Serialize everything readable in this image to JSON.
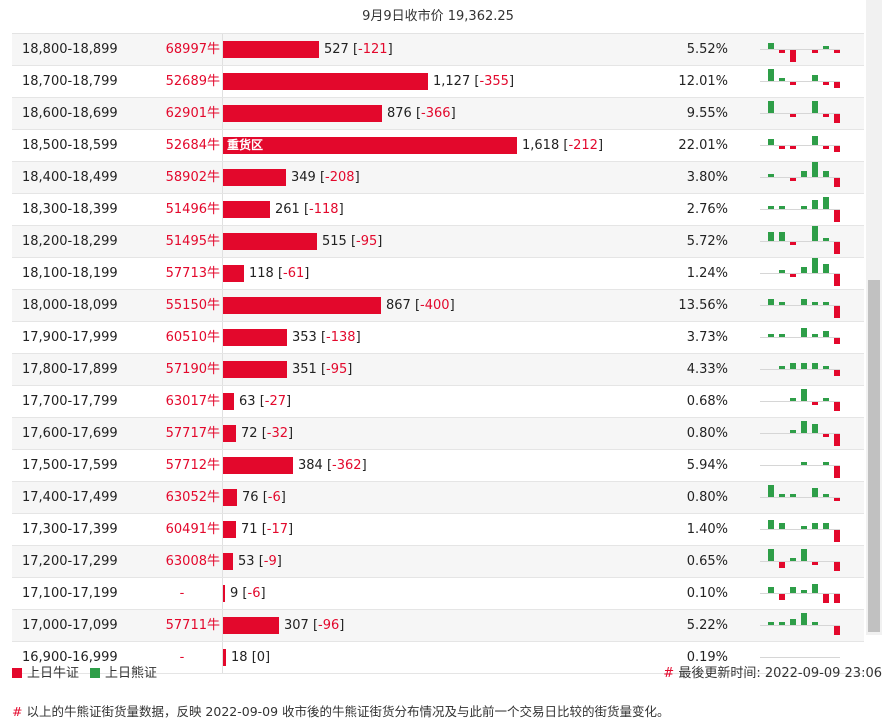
{
  "header": {
    "title": "9月9日收市价 19,362.25"
  },
  "rows": [
    {
      "range": "18,800-18,899",
      "code": "68997牛",
      "count": "527",
      "change": "-121",
      "pct": "5.52%",
      "bar": 527,
      "spark": [
        2,
        -1,
        -4,
        0,
        -1,
        1,
        -1
      ]
    },
    {
      "range": "18,700-18,799",
      "code": "52689牛",
      "count": "1,127",
      "change": "-355",
      "pct": "12.01%",
      "bar": 1127,
      "spark": [
        4,
        1,
        -1,
        0,
        2,
        -1,
        -2
      ]
    },
    {
      "range": "18,600-18,699",
      "code": "62901牛",
      "count": "876",
      "change": "-366",
      "pct": "9.55%",
      "bar": 876,
      "spark": [
        4,
        0,
        -1,
        0,
        4,
        -1,
        -3
      ]
    },
    {
      "range": "18,500-18,599",
      "code": "52684牛",
      "count": "1,618",
      "change": "-212",
      "pct": "22.01%",
      "bar": 1618,
      "label": "重货区",
      "spark": [
        2,
        -1,
        -1,
        0,
        3,
        -1,
        -2
      ]
    },
    {
      "range": "18,400-18,499",
      "code": "58902牛",
      "count": "349",
      "change": "-208",
      "pct": "3.80%",
      "bar": 349,
      "spark": [
        1,
        0,
        -1,
        2,
        5,
        2,
        -3
      ]
    },
    {
      "range": "18,300-18,399",
      "code": "51496牛",
      "count": "261",
      "change": "-118",
      "pct": "2.76%",
      "bar": 261,
      "spark": [
        1,
        1,
        0,
        1,
        3,
        4,
        -4
      ]
    },
    {
      "range": "18,200-18,299",
      "code": "51495牛",
      "count": "515",
      "change": "-95",
      "pct": "5.72%",
      "bar": 515,
      "spark": [
        3,
        3,
        -1,
        0,
        5,
        1,
        -4
      ]
    },
    {
      "range": "18,100-18,199",
      "code": "57713牛",
      "count": "118",
      "change": "-61",
      "pct": "1.24%",
      "bar": 118,
      "spark": [
        0,
        1,
        -1,
        2,
        5,
        3,
        -4
      ]
    },
    {
      "range": "18,000-18,099",
      "code": "55150牛",
      "count": "867",
      "change": "-400",
      "pct": "13.56%",
      "bar": 867,
      "spark": [
        2,
        1,
        0,
        2,
        1,
        1,
        -4
      ]
    },
    {
      "range": "17,900-17,999",
      "code": "60510牛",
      "count": "353",
      "change": "-138",
      "pct": "3.73%",
      "bar": 353,
      "spark": [
        1,
        1,
        0,
        3,
        1,
        2,
        -2
      ]
    },
    {
      "range": "17,800-17,899",
      "code": "57190牛",
      "count": "351",
      "change": "-95",
      "pct": "4.33%",
      "bar": 351,
      "spark": [
        0,
        1,
        2,
        2,
        2,
        1,
        -2
      ]
    },
    {
      "range": "17,700-17,799",
      "code": "63017牛",
      "count": "63",
      "change": "-27",
      "pct": "0.68%",
      "bar": 63,
      "spark": [
        0,
        0,
        1,
        4,
        -1,
        1,
        -3
      ]
    },
    {
      "range": "17,600-17,699",
      "code": "57717牛",
      "count": "72",
      "change": "-32",
      "pct": "0.80%",
      "bar": 72,
      "spark": [
        0,
        0,
        1,
        4,
        3,
        -1,
        -4
      ]
    },
    {
      "range": "17,500-17,599",
      "code": "57712牛",
      "count": "384",
      "change": "-362",
      "pct": "5.94%",
      "bar": 384,
      "spark": [
        0,
        0,
        0,
        1,
        0,
        1,
        -4
      ]
    },
    {
      "range": "17,400-17,499",
      "code": "63052牛",
      "count": "76",
      "change": "-6",
      "pct": "0.80%",
      "bar": 76,
      "spark": [
        4,
        1,
        1,
        0,
        3,
        1,
        -1
      ]
    },
    {
      "range": "17,300-17,399",
      "code": "60491牛",
      "count": "71",
      "change": "-17",
      "pct": "1.40%",
      "bar": 71,
      "spark": [
        3,
        2,
        0,
        1,
        2,
        2,
        -4
      ]
    },
    {
      "range": "17,200-17,299",
      "code": "63008牛",
      "count": "53",
      "change": "-9",
      "pct": "0.65%",
      "bar": 53,
      "spark": [
        4,
        -2,
        1,
        4,
        -1,
        0,
        -3
      ]
    },
    {
      "range": "17,100-17,199",
      "code": "-",
      "count": "9",
      "change": "-6",
      "pct": "0.10%",
      "bar": 9,
      "spark": [
        2,
        -2,
        2,
        1,
        3,
        -3,
        -3
      ]
    },
    {
      "range": "17,000-17,099",
      "code": "57711牛",
      "count": "307",
      "change": "-96",
      "pct": "5.22%",
      "bar": 307,
      "spark": [
        1,
        1,
        2,
        4,
        1,
        0,
        -3
      ]
    },
    {
      "range": "16,900-16,999",
      "code": "-",
      "count": "18",
      "change": "0",
      "pct": "0.19%",
      "bar": 18,
      "spark": []
    }
  ],
  "legend": {
    "bull": "上日牛证",
    "bear": "上日熊证",
    "bull_color": "#e3082c",
    "bear_color": "#2e9e48"
  },
  "updated": "# 最後更新时间: 2022-09-09 23:06",
  "footnote": "# 以上的牛熊证街货量数据，反映 2022-09-09 收市後的牛熊证街货分布情况及与此前一个交易日比较的街货量变化。"
}
